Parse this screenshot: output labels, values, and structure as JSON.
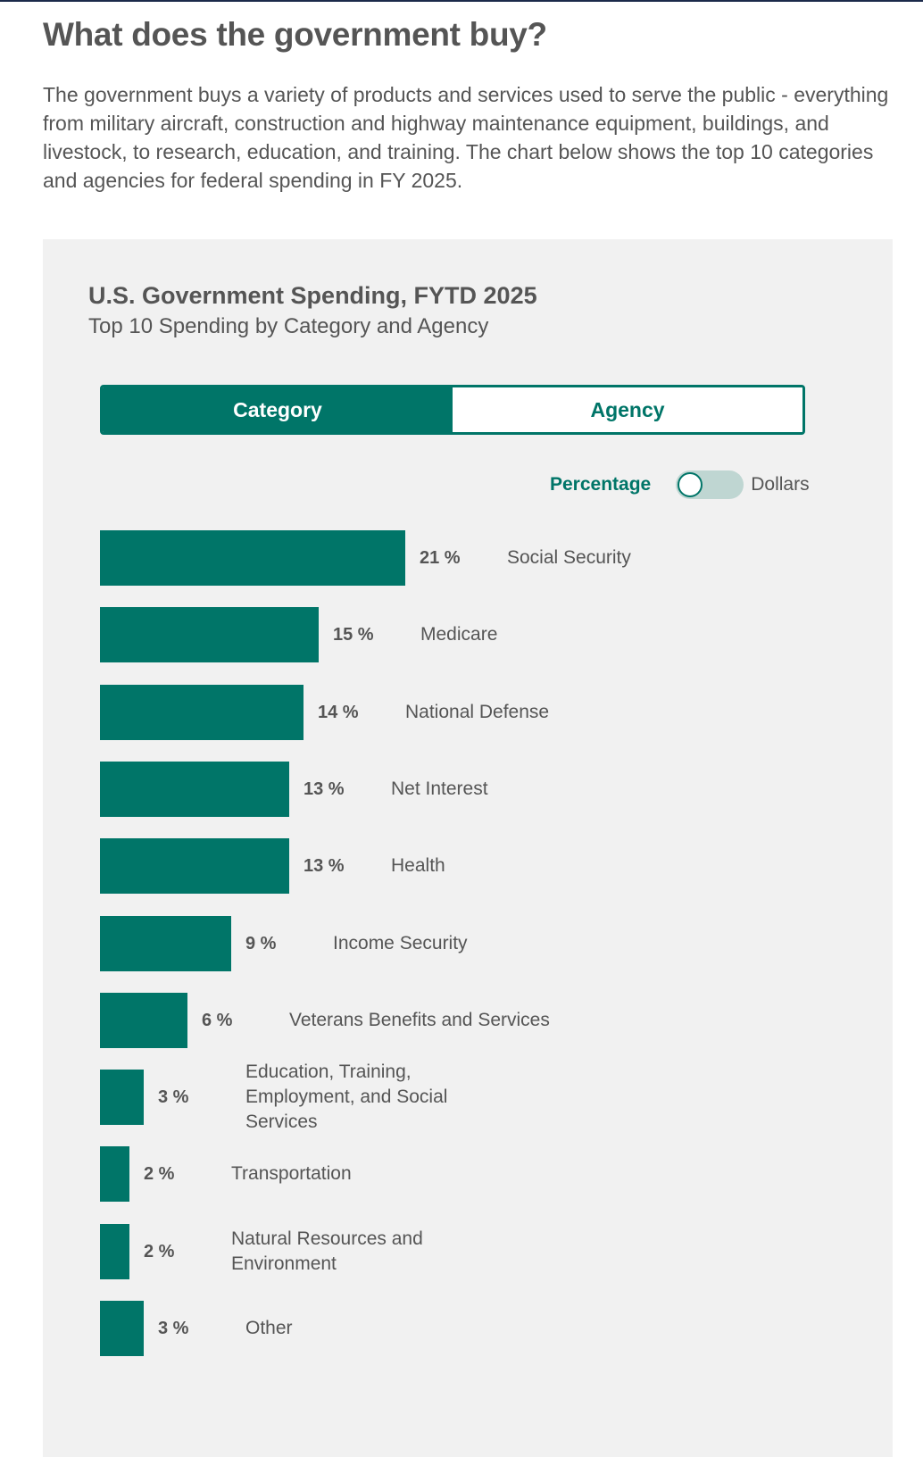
{
  "page": {
    "title": "What does the government buy?",
    "intro": "The government buys a variety of products and services used to serve the public - everything from military aircraft, construction and highway maintenance equipment, buildings, and livestock, to research, education, and training. The chart below shows the top 10 categories and agencies for federal spending in FY 2025."
  },
  "panel": {
    "title": "U.S. Government Spending, FYTD 2025",
    "subtitle": "Top 10 Spending by Category and Agency",
    "tabs": [
      {
        "label": "Category",
        "active": true
      },
      {
        "label": "Agency",
        "active": false
      }
    ],
    "unit_toggle": {
      "left_label": "Percentage",
      "right_label": "Dollars",
      "selected": "Percentage"
    }
  },
  "colors": {
    "accent": "#007568",
    "text": "#555555",
    "panel_bg": "#f1f1f1",
    "switch_track": "#bfd6d2"
  },
  "chart_data": {
    "type": "bar",
    "orientation": "horizontal",
    "categories": [
      "Social Security",
      "Medicare",
      "National Defense",
      "Net Interest",
      "Health",
      "Income Security",
      "Veterans Benefits and Services",
      "Education, Training, Employment, and Social Services",
      "Transportation",
      "Natural Resources and Environment",
      "Other"
    ],
    "values": [
      21,
      15,
      14,
      13,
      13,
      9,
      6,
      3,
      2,
      2,
      3
    ],
    "value_labels": [
      "21 %",
      "15 %",
      "14 %",
      "13 %",
      "13 %",
      "9 %",
      "6 %",
      "3 %",
      "2 %",
      "2 %",
      "3 %"
    ],
    "title": "U.S. Government Spending, FYTD 2025",
    "subtitle": "Top 10 Spending by Category and Agency",
    "xlabel": "",
    "ylabel": "",
    "grid": false
  }
}
